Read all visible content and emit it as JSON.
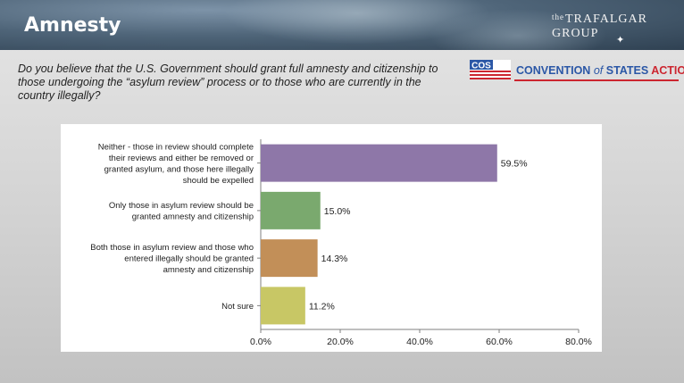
{
  "slide": {
    "title": "Amnesty",
    "question": "Do you believe that the U.S. Government should grant full amnesty and citizenship to those undergoing the “asylum review” process or to those who are currently in the country illegally?",
    "logo_trafalgar": {
      "the": "the",
      "name": "TRAFALGAR GROUP"
    },
    "logo_cos": {
      "abbr": "COS",
      "convention": "CONVENTION",
      "of": "of",
      "states": "STATES",
      "action": "ACTION"
    }
  },
  "chart_data": {
    "type": "bar",
    "orientation": "horizontal",
    "categories": [
      [
        "Neither - those in review should complete",
        "their reviews and either be removed or",
        "granted asylum, and those here illegally",
        "should be expelled"
      ],
      [
        "Only those in asylum review should be",
        "granted amnesty and citizenship"
      ],
      [
        "Both those in asylum review and those who",
        "entered illegally should be granted",
        "amnesty and citizenship"
      ],
      [
        "Not sure"
      ]
    ],
    "values": [
      59.5,
      15.0,
      14.3,
      11.2
    ],
    "value_labels": [
      "59.5%",
      "15.0%",
      "14.3%",
      "11.2%"
    ],
    "colors": [
      "#8e77a8",
      "#7aa96e",
      "#c28f58",
      "#c8c765"
    ],
    "xlim": [
      0,
      80
    ],
    "xticks": [
      "0.0%",
      "20.0%",
      "40.0%",
      "60.0%",
      "80.0%"
    ],
    "grid": false
  }
}
